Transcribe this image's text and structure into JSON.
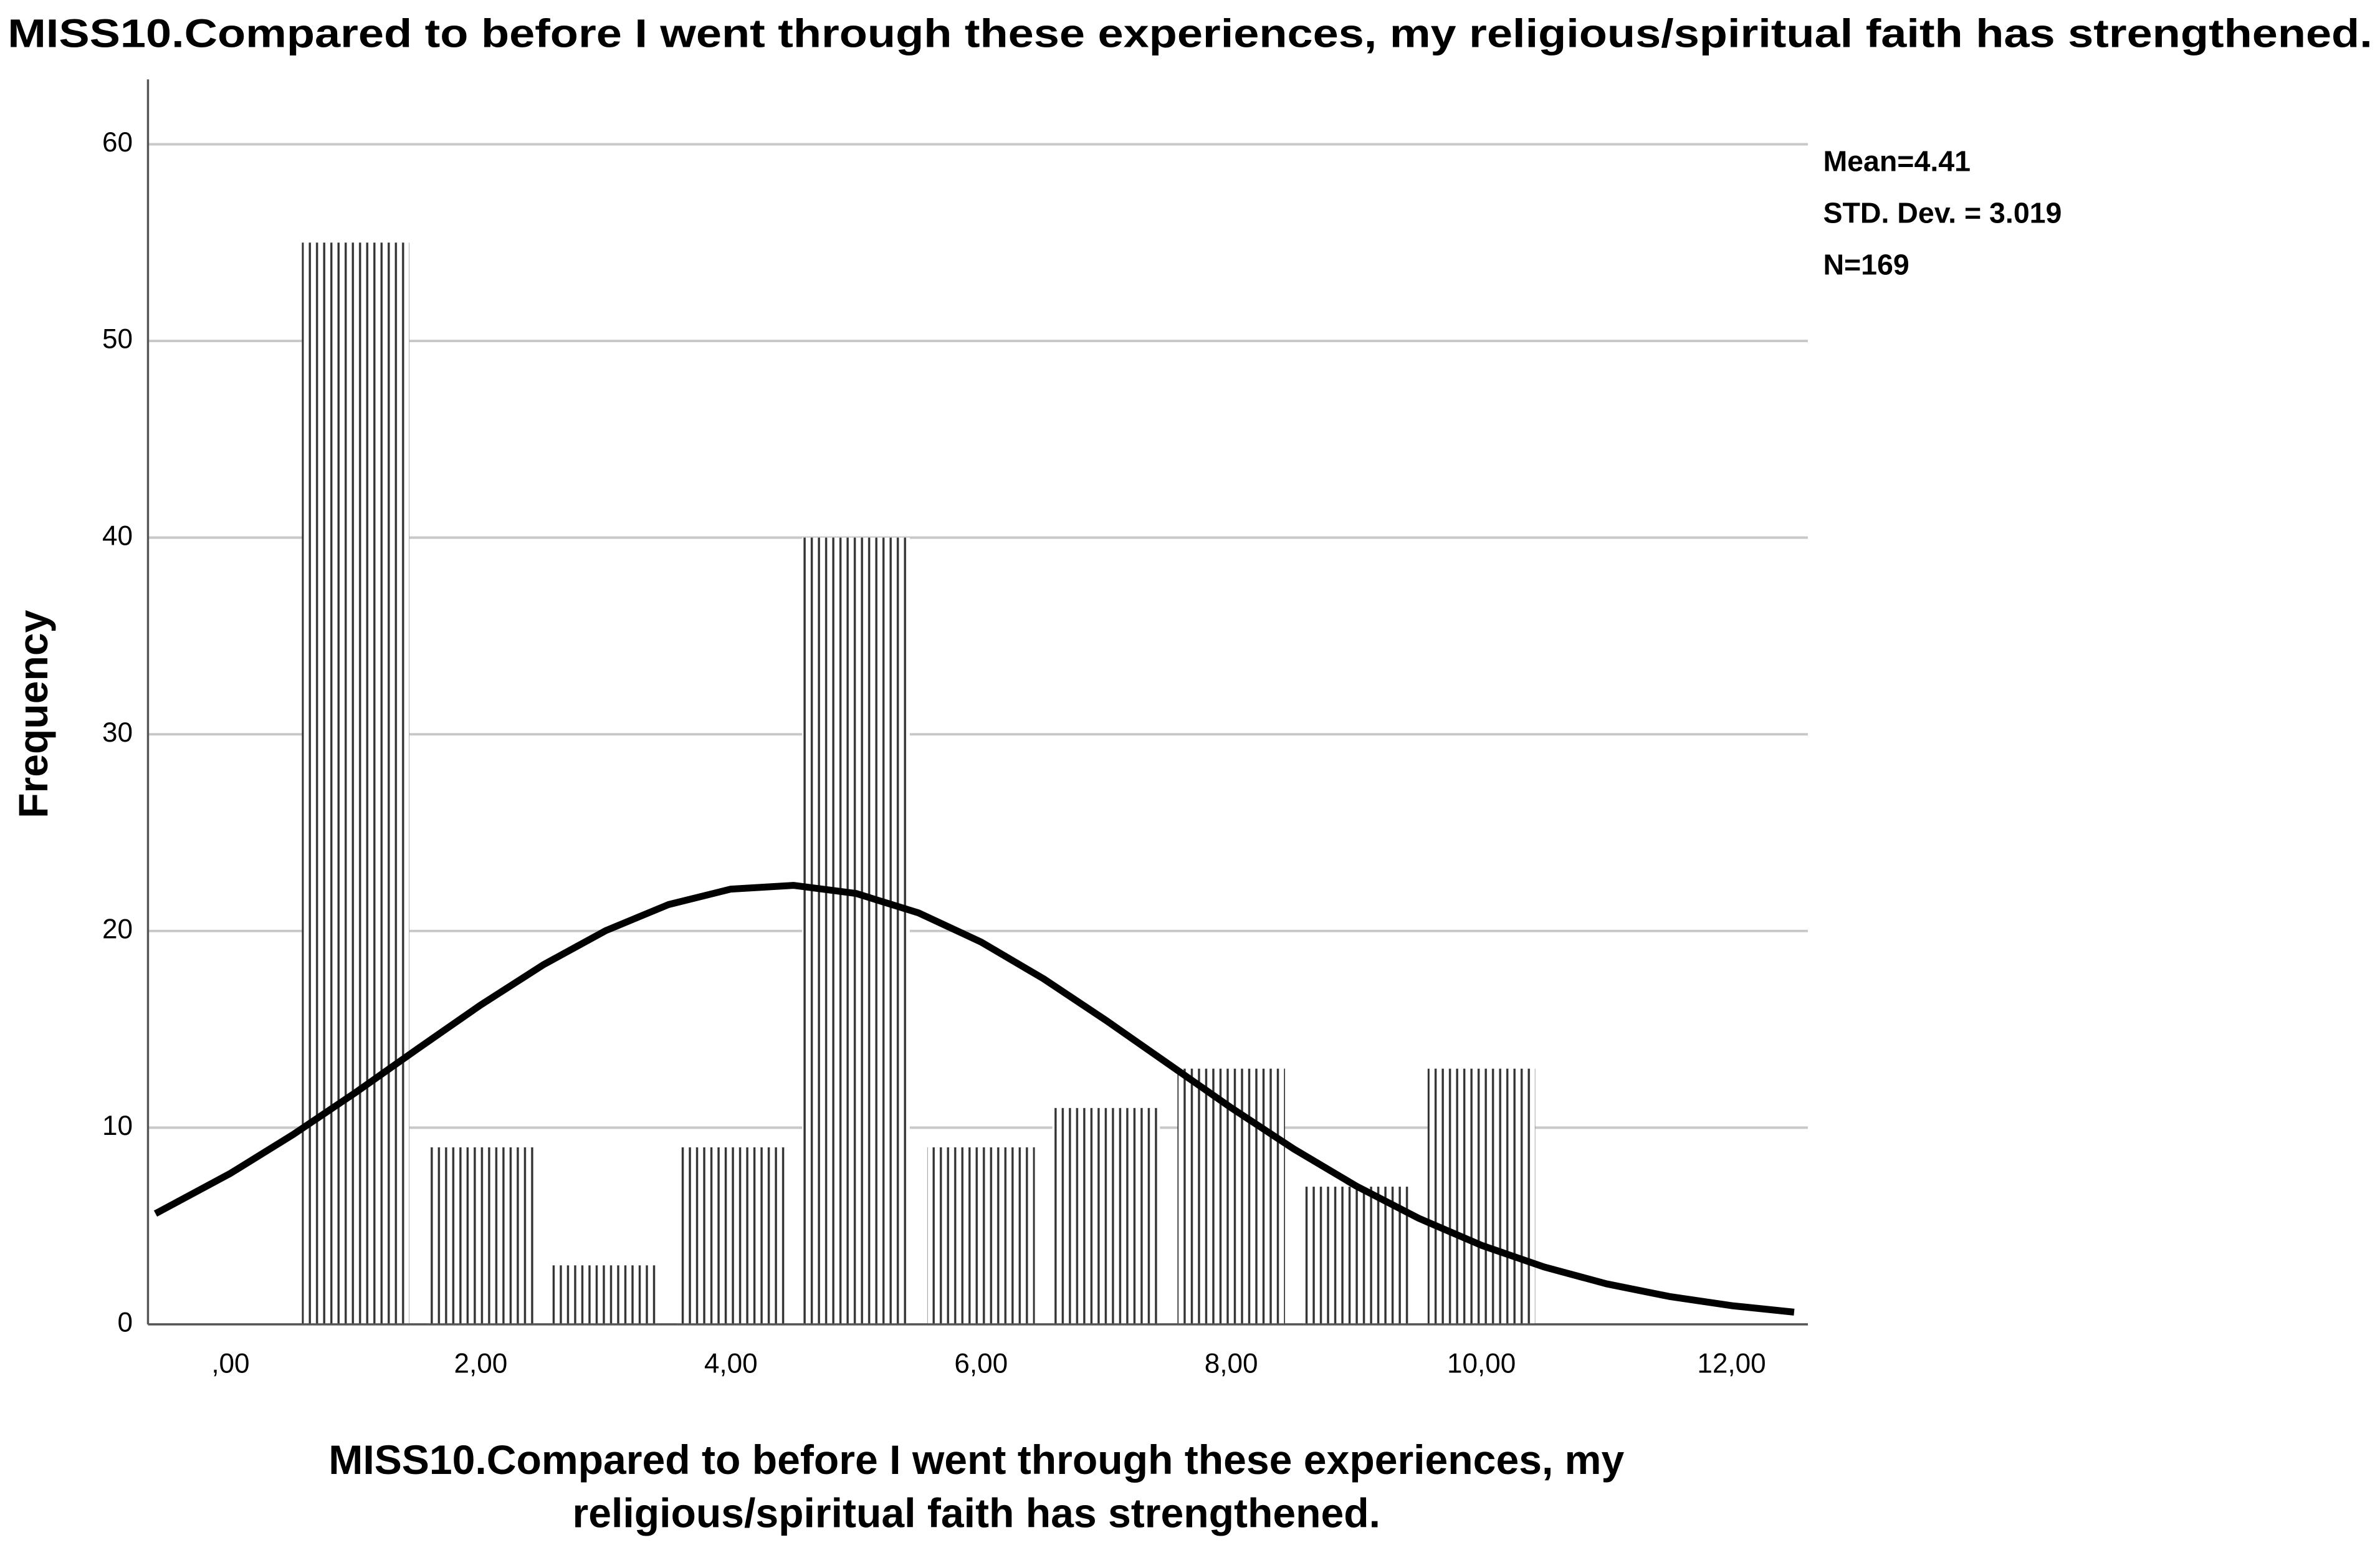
{
  "chart_data": {
    "type": "histogram",
    "title": "MISS10.Compared to before I went through these experiences, my religious/spiritual faith has strengthened.",
    "x_label": "MISS10.Compared to before I went through these experiences, my religious/spiritual faith has strengthened.",
    "y_label": "Frequency",
    "bins": [
      0.5,
      1.5,
      2.5,
      3.5,
      4.5,
      5.5,
      6.5,
      7.5,
      8.5,
      9.5,
      10.5
    ],
    "values": [
      55,
      9,
      3,
      9,
      40,
      9,
      11,
      13,
      7,
      13
    ],
    "color": "#333333",
    "curve": {
      "color": "#000000",
      "x": [
        -0.6,
        0,
        0.5,
        1,
        1.5,
        2,
        2.5,
        3,
        3.5,
        4,
        4.5,
        5,
        5.5,
        6,
        6.5,
        7,
        7.5,
        8,
        8.5,
        9,
        9.5,
        10,
        10.5,
        11,
        11.5,
        12,
        12.5
      ],
      "values": [
        5.63,
        7.68,
        9.65,
        11.79,
        14.03,
        16.24,
        18.28,
        20.02,
        21.34,
        22.13,
        22.32,
        21.91,
        20.92,
        19.44,
        17.57,
        15.45,
        13.23,
        11.01,
        8.92,
        7.03,
        5.39,
        4.02,
        2.92,
        2.06,
        1.42,
        0.95,
        0.62
      ]
    },
    "annotations": [
      "Mean=4.41",
      "STD. Dev. = 3.019",
      "N=169"
    ],
    "xlim": [
      -0.66,
      12.61
    ],
    "xticks": [
      {
        "value": 0,
        "label": ",00"
      },
      {
        "value": 2,
        "label": "2,00"
      },
      {
        "value": 4,
        "label": "4,00"
      },
      {
        "value": 6,
        "label": "6,00"
      },
      {
        "value": 8,
        "label": "8,00"
      },
      {
        "value": 10,
        "label": "10,00"
      },
      {
        "value": 12,
        "label": "12,00"
      }
    ],
    "ylim": [
      0,
      63.3
    ],
    "yticks": [
      0,
      10,
      20,
      30,
      40,
      50,
      60
    ],
    "grid": true
  }
}
